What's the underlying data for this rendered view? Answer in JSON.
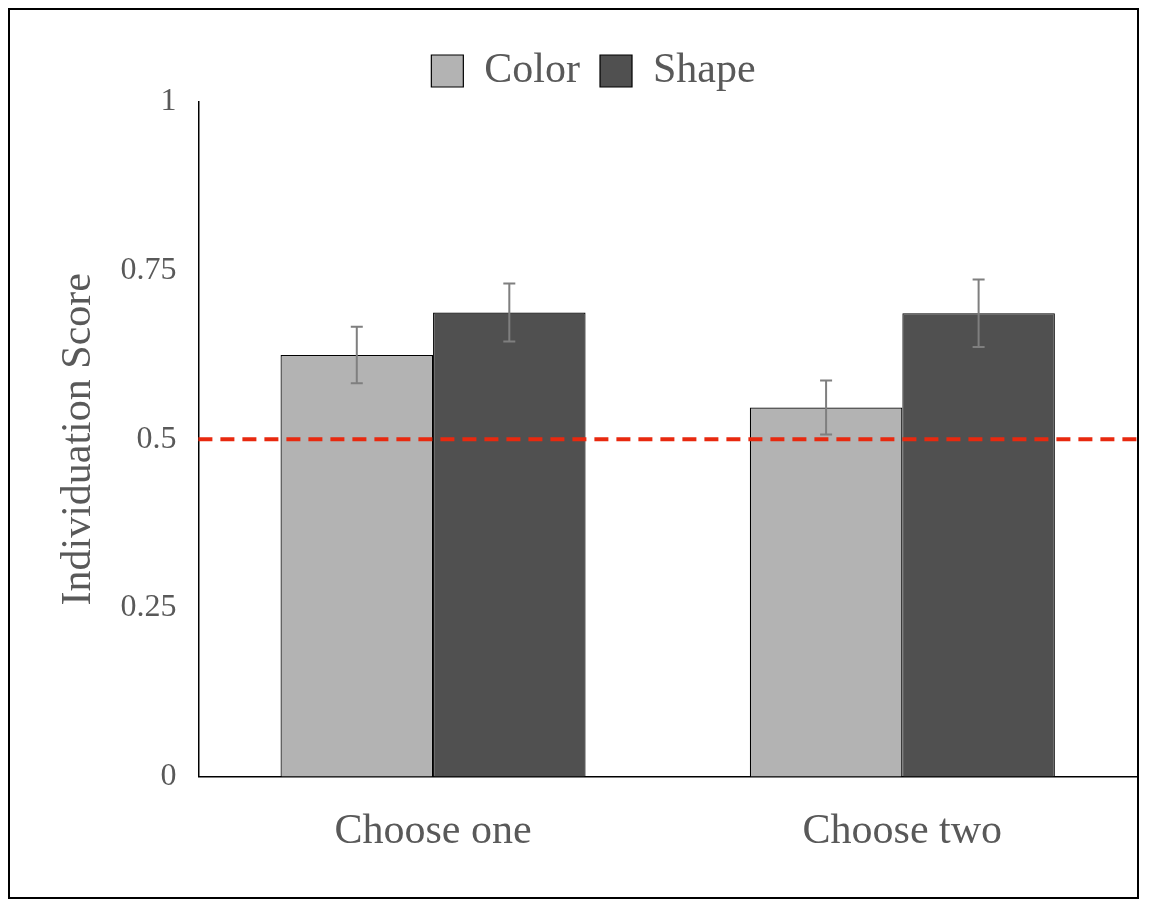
{
  "chart_data": {
    "type": "bar",
    "ylabel": "Individuation Score",
    "categories": [
      "Choose one",
      "Choose two"
    ],
    "series": [
      {
        "name": "Color",
        "color": "#b3b3b3",
        "values": [
          0.625,
          0.547
        ],
        "errors": [
          0.042,
          0.04
        ]
      },
      {
        "name": "Shape",
        "color": "#505050",
        "values": [
          0.688,
          0.687
        ],
        "errors": [
          0.043,
          0.05
        ]
      }
    ],
    "ylim": [
      0,
      1
    ],
    "yticks": [
      0,
      0.25,
      0.5,
      0.75,
      1
    ],
    "grid": false,
    "legend": "top",
    "ref_lines": [
      {
        "axis": "y",
        "value": 0.5,
        "color": "#e8290f",
        "line_style": "dashed"
      }
    ]
  }
}
